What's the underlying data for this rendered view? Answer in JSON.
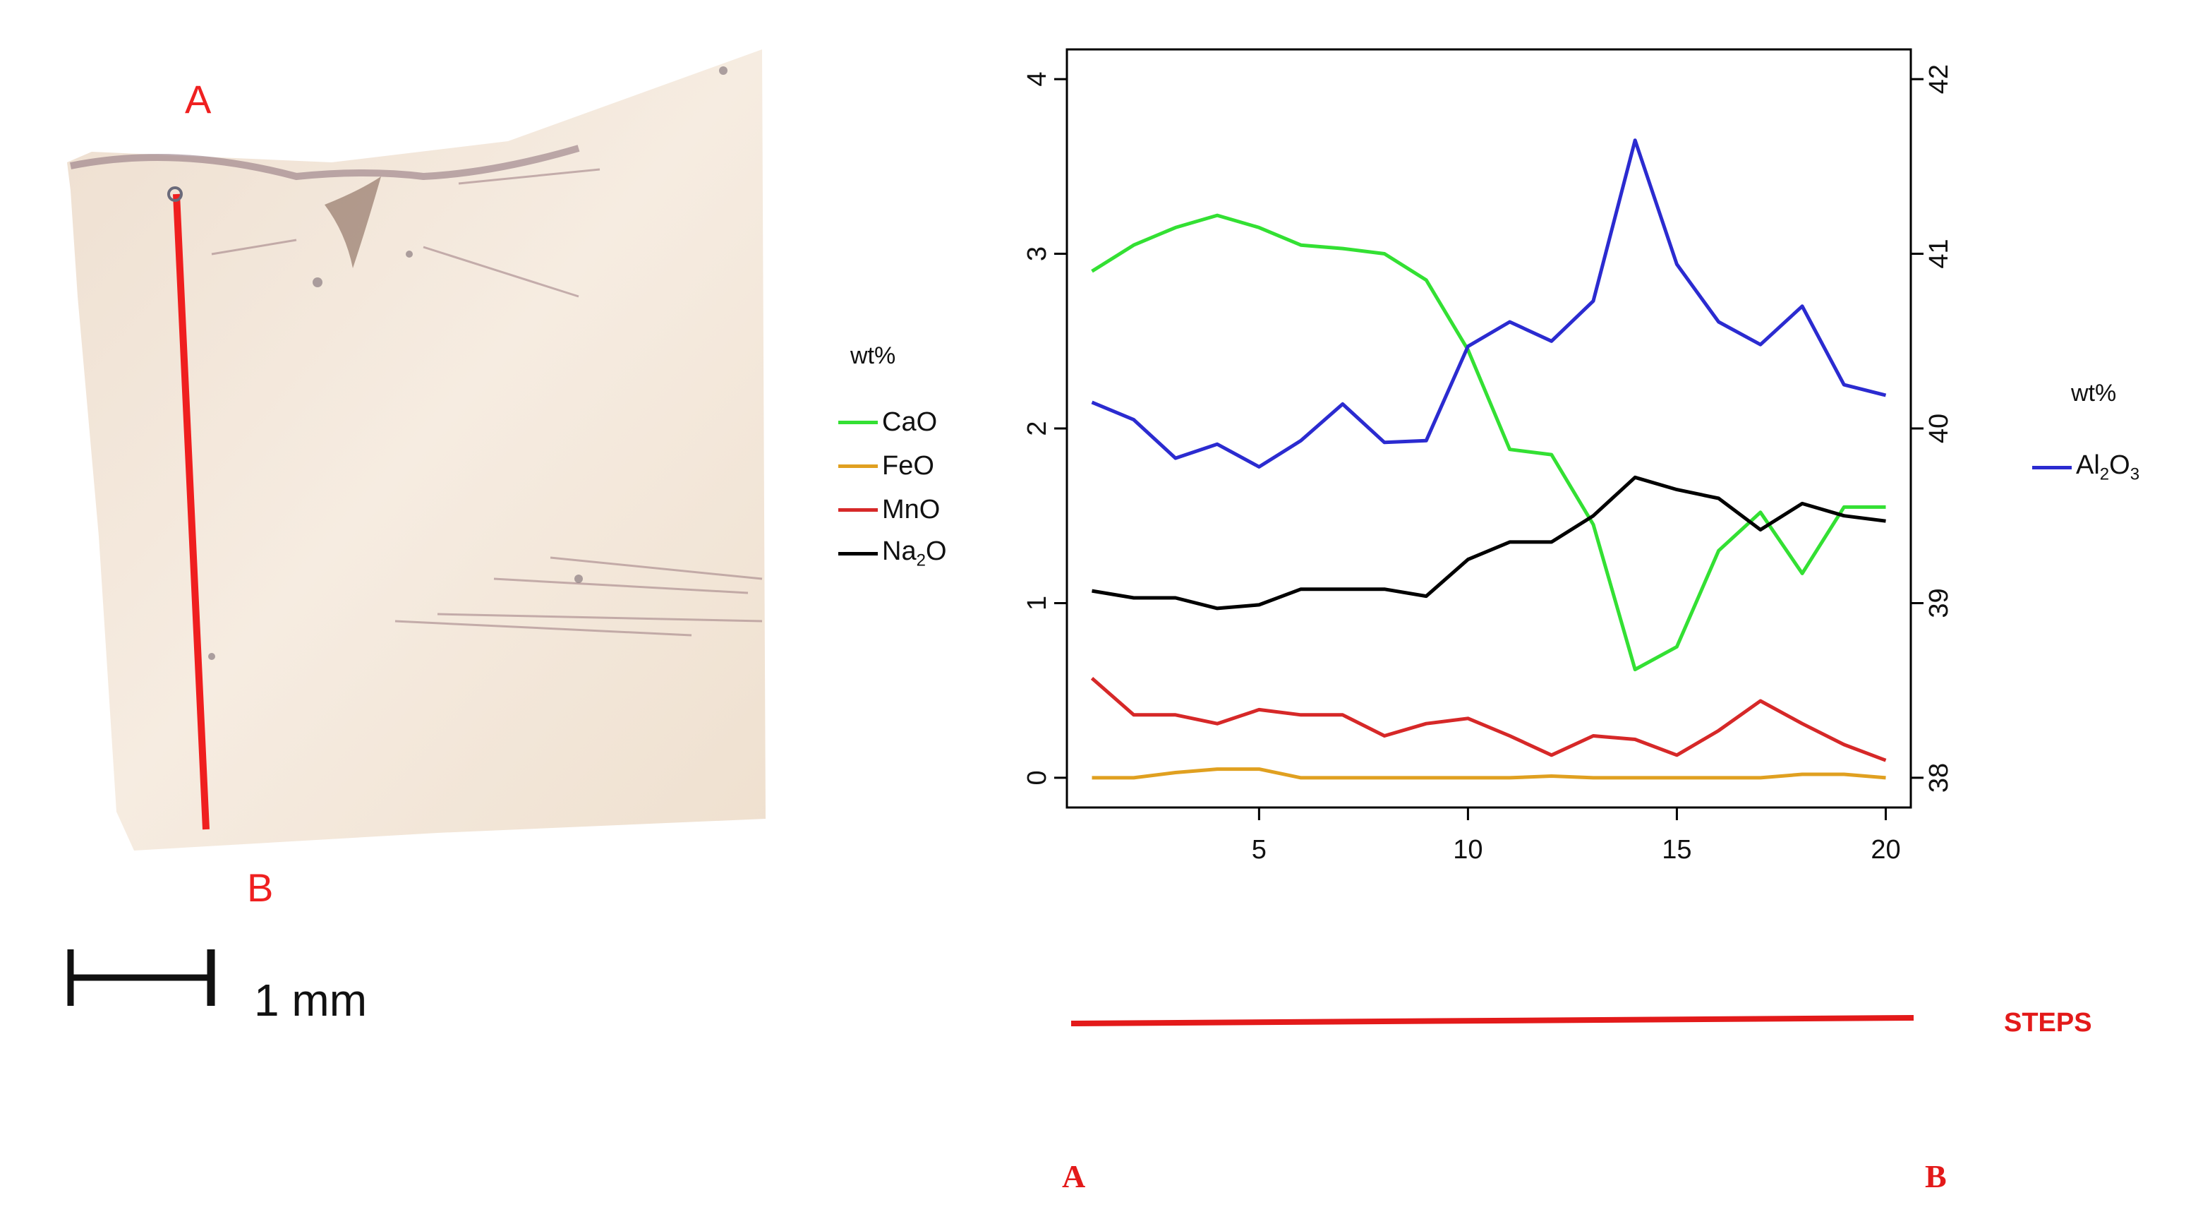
{
  "photo": {
    "label_a": "A",
    "label_b": "B",
    "scale_bar_text": "1 mm"
  },
  "legend_left": {
    "title": "wt%",
    "items": [
      {
        "name": "CaO",
        "base": "CaO",
        "sub": "",
        "rest": "",
        "color": "#33e033"
      },
      {
        "name": "FeO",
        "base": "FeO",
        "sub": "",
        "rest": "",
        "color": "#e0a020"
      },
      {
        "name": "MnO",
        "base": "MnO",
        "sub": "",
        "rest": "",
        "color": "#d62828"
      },
      {
        "name": "Na2O",
        "base": "Na",
        "sub": "2",
        "rest": "O",
        "color": "#000000"
      }
    ]
  },
  "legend_right": {
    "title": "wt%",
    "items": [
      {
        "name": "Al2O3",
        "base": "Al",
        "sub": "2",
        "rest": "O",
        "sub2": "3",
        "color": "#2b2bd0"
      }
    ]
  },
  "chart_data": {
    "type": "line",
    "x": [
      1,
      2,
      3,
      4,
      5,
      6,
      7,
      8,
      9,
      10,
      11,
      12,
      13,
      14,
      15,
      16,
      17,
      18,
      19,
      20
    ],
    "xlim": [
      0.4,
      20.6
    ],
    "ylim_left": [
      -0.17,
      4.17
    ],
    "ylim_right": [
      37.83,
      42.17
    ],
    "xticks": [
      5,
      10,
      15,
      20
    ],
    "yticks_left": [
      0,
      1,
      2,
      3,
      4
    ],
    "yticks_right": [
      38,
      39,
      40,
      41,
      42
    ],
    "series": [
      {
        "name": "CaO",
        "axis": "left",
        "color": "#33e033",
        "values": [
          2.9,
          3.05,
          3.15,
          3.22,
          3.15,
          3.05,
          3.03,
          3.0,
          2.85,
          2.45,
          1.88,
          1.85,
          1.45,
          0.62,
          0.75,
          1.3,
          1.52,
          1.17,
          1.55,
          1.55
        ]
      },
      {
        "name": "FeO",
        "axis": "left",
        "color": "#e0a020",
        "values": [
          0.0,
          0.0,
          0.03,
          0.05,
          0.05,
          0.0,
          0.0,
          0.0,
          0.0,
          0.0,
          0.0,
          0.01,
          0.0,
          0.0,
          0.0,
          0.0,
          0.0,
          0.02,
          0.02,
          0.0
        ]
      },
      {
        "name": "MnO",
        "axis": "left",
        "color": "#d62828",
        "values": [
          0.57,
          0.36,
          0.36,
          0.31,
          0.39,
          0.36,
          0.36,
          0.24,
          0.31,
          0.34,
          0.24,
          0.13,
          0.24,
          0.22,
          0.13,
          0.27,
          0.44,
          0.31,
          0.19,
          0.1
        ]
      },
      {
        "name": "Na2O",
        "axis": "left",
        "color": "#000000",
        "values": [
          1.07,
          1.03,
          1.03,
          0.97,
          0.99,
          1.08,
          1.08,
          1.08,
          1.04,
          1.25,
          1.35,
          1.35,
          1.5,
          1.72,
          1.65,
          1.6,
          1.42,
          1.57,
          1.5,
          1.47
        ]
      },
      {
        "name": "Al2O3",
        "axis": "right",
        "color": "#2b2bd0",
        "values": [
          40.15,
          40.05,
          39.83,
          39.91,
          39.78,
          39.93,
          40.14,
          39.92,
          39.93,
          40.47,
          40.61,
          40.5,
          40.73,
          41.65,
          40.94,
          40.61,
          40.48,
          40.7,
          40.25,
          40.19
        ]
      }
    ],
    "steps_label": "STEPS",
    "path_start": "A",
    "path_end": "B"
  }
}
